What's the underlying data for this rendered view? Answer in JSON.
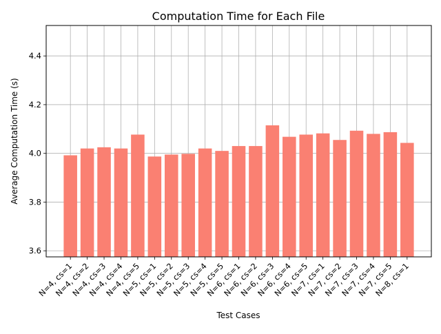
{
  "chart_data": {
    "type": "bar",
    "title": "Computation Time for Each File",
    "xlabel": "Test Cases",
    "ylabel": "Average Computation Time (s)",
    "ylim": [
      3.575,
      4.525
    ],
    "yticks": [
      "3.6",
      "3.8",
      "4.0",
      "4.2",
      "4.4"
    ],
    "grid": true,
    "bar_color": "#fa8072",
    "grid_color": "#b0b0b0",
    "categories": [
      "N=4, cs=1",
      "N=4, cs=2",
      "N=4, cs=3",
      "N=4, cs=4",
      "N=4, cs=5",
      "N=5, cs=1",
      "N=5, cs=2",
      "N=5, cs=3",
      "N=5, cs=4",
      "N=5, cs=5",
      "N=6, cs=1",
      "N=6, cs=2",
      "N=6, cs=3",
      "N=6, cs=4",
      "N=6, cs=5",
      "N=7, cs=1",
      "N=7, cs=2",
      "N=7, cs=3",
      "N=7, cs=4",
      "N=7, cs=5",
      "N=8, cs=1"
    ],
    "values": [
      3.992,
      4.02,
      4.025,
      4.02,
      4.077,
      3.987,
      3.995,
      3.998,
      4.02,
      4.01,
      4.03,
      4.03,
      4.115,
      4.068,
      4.077,
      4.082,
      4.055,
      4.093,
      4.08,
      4.087,
      4.043
    ]
  }
}
